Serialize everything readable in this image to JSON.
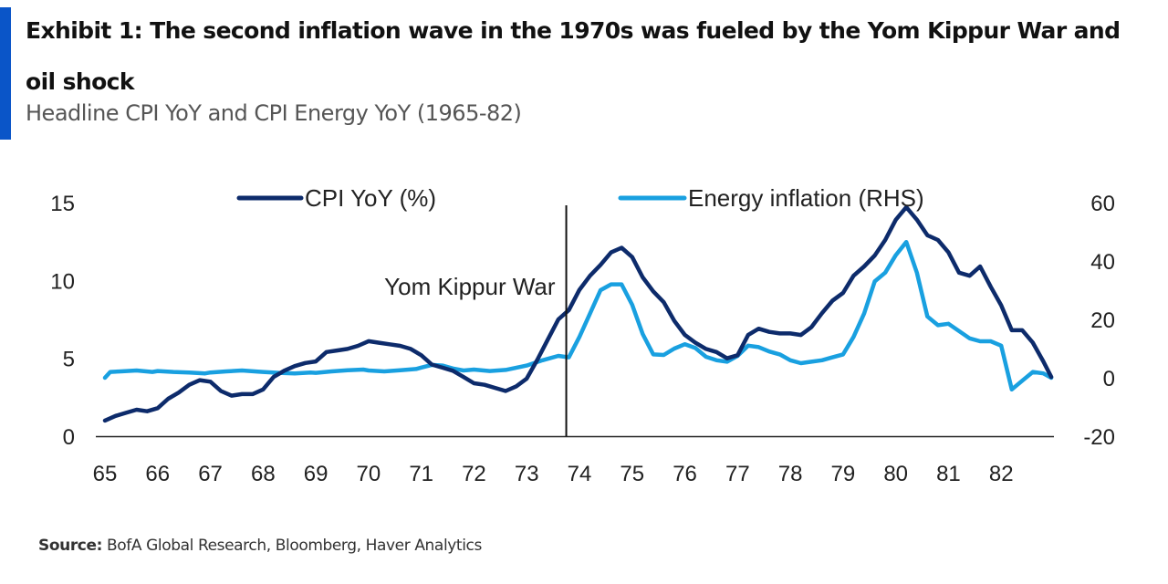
{
  "header": {
    "title": "Exhibit 1: The second inflation wave in the 1970s was fueled by the Yom Kippur War and oil shock",
    "subtitle": "Headline CPI YoY and CPI Energy YoY (1965-82)"
  },
  "footer": {
    "source_label": "Source:",
    "source_text": "BofA Global Research, Bloomberg, Haver Analytics"
  },
  "chart_data": {
    "type": "line",
    "title": "Exhibit 1: The second inflation wave in the 1970s was fueled by the Yom Kippur War and oil shock",
    "subtitle": "Headline CPI YoY and CPI Energy YoY (1965-82)",
    "xlabel": "",
    "ylabel_left": "",
    "ylabel_right": "",
    "x_range": [
      1965,
      1983
    ],
    "x_ticks": [
      1965,
      1966,
      1967,
      1968,
      1969,
      1970,
      1971,
      1972,
      1973,
      1974,
      1975,
      1976,
      1977,
      1978,
      1979,
      1980,
      1981,
      1982
    ],
    "x_tick_labels": [
      "65",
      "66",
      "67",
      "68",
      "69",
      "70",
      "71",
      "72",
      "73",
      "74",
      "75",
      "76",
      "77",
      "78",
      "79",
      "80",
      "81",
      "82"
    ],
    "ylim_left": [
      0,
      15
    ],
    "y_ticks_left": [
      "0",
      "5",
      "10",
      "15"
    ],
    "ylim_right": [
      -20,
      60
    ],
    "y_ticks_right": [
      "-20",
      "0",
      "20",
      "40",
      "60"
    ],
    "grid": false,
    "legend_position": "top",
    "annotation": {
      "label": "Yom Kippur War",
      "x": 1973.75
    },
    "series": [
      {
        "name": "CPI YoY (%)",
        "axis": "left",
        "color": "#0d2b6b",
        "points": [
          [
            1965.0,
            1.0
          ],
          [
            1965.2,
            1.3
          ],
          [
            1965.4,
            1.5
          ],
          [
            1965.6,
            1.7
          ],
          [
            1965.8,
            1.6
          ],
          [
            1966.0,
            1.8
          ],
          [
            1966.2,
            2.4
          ],
          [
            1966.4,
            2.8
          ],
          [
            1966.6,
            3.3
          ],
          [
            1966.8,
            3.6
          ],
          [
            1967.0,
            3.5
          ],
          [
            1967.2,
            2.9
          ],
          [
            1967.4,
            2.6
          ],
          [
            1967.6,
            2.7
          ],
          [
            1967.8,
            2.7
          ],
          [
            1968.0,
            3.0
          ],
          [
            1968.2,
            3.8
          ],
          [
            1968.4,
            4.2
          ],
          [
            1968.6,
            4.5
          ],
          [
            1968.8,
            4.7
          ],
          [
            1969.0,
            4.8
          ],
          [
            1969.2,
            5.4
          ],
          [
            1969.4,
            5.5
          ],
          [
            1969.6,
            5.6
          ],
          [
            1969.8,
            5.8
          ],
          [
            1970.0,
            6.1
          ],
          [
            1970.2,
            6.0
          ],
          [
            1970.4,
            5.9
          ],
          [
            1970.6,
            5.8
          ],
          [
            1970.8,
            5.6
          ],
          [
            1971.0,
            5.2
          ],
          [
            1971.2,
            4.6
          ],
          [
            1971.4,
            4.4
          ],
          [
            1971.6,
            4.2
          ],
          [
            1971.8,
            3.8
          ],
          [
            1972.0,
            3.4
          ],
          [
            1972.2,
            3.3
          ],
          [
            1972.4,
            3.1
          ],
          [
            1972.6,
            2.9
          ],
          [
            1972.8,
            3.2
          ],
          [
            1973.0,
            3.7
          ],
          [
            1973.2,
            4.9
          ],
          [
            1973.4,
            6.2
          ],
          [
            1973.6,
            7.5
          ],
          [
            1973.8,
            8.1
          ],
          [
            1974.0,
            9.4
          ],
          [
            1974.2,
            10.3
          ],
          [
            1974.4,
            11.0
          ],
          [
            1974.6,
            11.8
          ],
          [
            1974.8,
            12.1
          ],
          [
            1975.0,
            11.5
          ],
          [
            1975.2,
            10.2
          ],
          [
            1975.4,
            9.3
          ],
          [
            1975.6,
            8.6
          ],
          [
            1975.8,
            7.4
          ],
          [
            1976.0,
            6.5
          ],
          [
            1976.2,
            6.0
          ],
          [
            1976.4,
            5.6
          ],
          [
            1976.6,
            5.4
          ],
          [
            1976.8,
            5.0
          ],
          [
            1977.0,
            5.2
          ],
          [
            1977.2,
            6.5
          ],
          [
            1977.4,
            6.9
          ],
          [
            1977.6,
            6.7
          ],
          [
            1977.8,
            6.6
          ],
          [
            1978.0,
            6.6
          ],
          [
            1978.2,
            6.5
          ],
          [
            1978.4,
            7.0
          ],
          [
            1978.6,
            7.9
          ],
          [
            1978.8,
            8.7
          ],
          [
            1979.0,
            9.2
          ],
          [
            1979.2,
            10.3
          ],
          [
            1979.4,
            10.9
          ],
          [
            1979.6,
            11.6
          ],
          [
            1979.8,
            12.6
          ],
          [
            1980.0,
            13.9
          ],
          [
            1980.2,
            14.7
          ],
          [
            1980.4,
            13.9
          ],
          [
            1980.6,
            12.9
          ],
          [
            1980.8,
            12.6
          ],
          [
            1981.0,
            11.8
          ],
          [
            1981.2,
            10.5
          ],
          [
            1981.4,
            10.3
          ],
          [
            1981.6,
            10.9
          ],
          [
            1981.8,
            9.6
          ],
          [
            1982.0,
            8.4
          ],
          [
            1982.2,
            6.8
          ],
          [
            1982.4,
            6.8
          ],
          [
            1982.6,
            6.0
          ],
          [
            1982.8,
            4.8
          ],
          [
            1982.95,
            3.8
          ]
        ]
      },
      {
        "name": "Energy inflation (RHS)",
        "axis": "right",
        "color": "#19a0e0",
        "points": [
          [
            1965.0,
            0.0
          ],
          [
            1965.1,
            2.0
          ],
          [
            1965.3,
            2.2
          ],
          [
            1965.6,
            2.5
          ],
          [
            1965.9,
            2.0
          ],
          [
            1966.0,
            2.3
          ],
          [
            1966.3,
            2.0
          ],
          [
            1966.6,
            1.8
          ],
          [
            1966.9,
            1.5
          ],
          [
            1967.0,
            1.8
          ],
          [
            1967.3,
            2.2
          ],
          [
            1967.6,
            2.5
          ],
          [
            1967.9,
            2.1
          ],
          [
            1968.0,
            2.0
          ],
          [
            1968.3,
            1.7
          ],
          [
            1968.6,
            1.5
          ],
          [
            1968.9,
            1.8
          ],
          [
            1969.0,
            1.7
          ],
          [
            1969.3,
            2.2
          ],
          [
            1969.6,
            2.6
          ],
          [
            1969.9,
            2.8
          ],
          [
            1970.0,
            2.5
          ],
          [
            1970.3,
            2.2
          ],
          [
            1970.6,
            2.6
          ],
          [
            1970.9,
            3.0
          ],
          [
            1971.0,
            3.5
          ],
          [
            1971.2,
            4.4
          ],
          [
            1971.4,
            4.2
          ],
          [
            1971.6,
            3.2
          ],
          [
            1971.8,
            2.5
          ],
          [
            1972.0,
            2.8
          ],
          [
            1972.3,
            2.3
          ],
          [
            1972.6,
            2.7
          ],
          [
            1972.9,
            3.8
          ],
          [
            1973.0,
            4.2
          ],
          [
            1973.3,
            6.0
          ],
          [
            1973.6,
            7.5
          ],
          [
            1973.8,
            7.0
          ],
          [
            1974.0,
            14.0
          ],
          [
            1974.2,
            22.0
          ],
          [
            1974.4,
            30.0
          ],
          [
            1974.6,
            32.0
          ],
          [
            1974.8,
            32.0
          ],
          [
            1975.0,
            25.0
          ],
          [
            1975.2,
            15.0
          ],
          [
            1975.4,
            8.0
          ],
          [
            1975.6,
            7.8
          ],
          [
            1975.8,
            10.0
          ],
          [
            1976.0,
            11.5
          ],
          [
            1976.2,
            10.2
          ],
          [
            1976.4,
            7.2
          ],
          [
            1976.6,
            6.0
          ],
          [
            1976.8,
            5.5
          ],
          [
            1977.0,
            7.5
          ],
          [
            1977.2,
            11.0
          ],
          [
            1977.4,
            10.5
          ],
          [
            1977.6,
            9.0
          ],
          [
            1977.8,
            8.0
          ],
          [
            1978.0,
            6.0
          ],
          [
            1978.2,
            5.0
          ],
          [
            1978.4,
            5.5
          ],
          [
            1978.6,
            6.0
          ],
          [
            1978.8,
            7.0
          ],
          [
            1979.0,
            8.0
          ],
          [
            1979.2,
            14.0
          ],
          [
            1979.4,
            22.0
          ],
          [
            1979.6,
            33.0
          ],
          [
            1979.8,
            36.0
          ],
          [
            1980.0,
            42.0
          ],
          [
            1980.2,
            46.5
          ],
          [
            1980.4,
            36.0
          ],
          [
            1980.6,
            21.0
          ],
          [
            1980.8,
            18.0
          ],
          [
            1981.0,
            18.5
          ],
          [
            1981.2,
            16.0
          ],
          [
            1981.4,
            13.5
          ],
          [
            1981.6,
            12.5
          ],
          [
            1981.8,
            12.5
          ],
          [
            1982.0,
            11.0
          ],
          [
            1982.2,
            -4.0
          ],
          [
            1982.4,
            -1.0
          ],
          [
            1982.6,
            2.0
          ],
          [
            1982.8,
            1.5
          ],
          [
            1982.95,
            0.0
          ]
        ]
      }
    ]
  }
}
